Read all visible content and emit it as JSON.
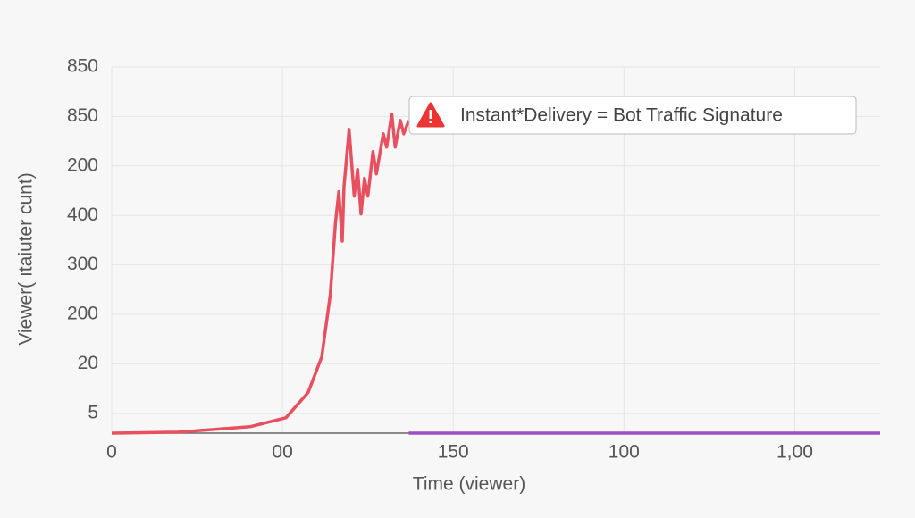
{
  "chart_data": {
    "type": "line",
    "ylabel": "Viewer( ıtaiuter cunt)",
    "xlabel": "Time (viewer)",
    "annotation": "Instant*Delivery = Bot Traffic Signature",
    "grid": true,
    "xlim": [
      0,
      4.5
    ],
    "ylim": [
      0.6,
      8
    ],
    "xticks": [
      0,
      {
        "value": 1,
        "label": "00"
      },
      {
        "value": 2,
        "label": "150"
      },
      {
        "value": 3,
        "label": "100"
      },
      {
        "value": 4,
        "label": "1,00"
      }
    ],
    "yticks": [
      {
        "value": 1,
        "label": "5"
      },
      {
        "value": 2,
        "label": "20"
      },
      {
        "value": 3,
        "label": "200"
      },
      {
        "value": 4,
        "label": "300"
      },
      {
        "value": 5,
        "label": "400"
      },
      {
        "value": 6,
        "label": "200"
      },
      {
        "value": 7,
        "label": "850"
      },
      {
        "value": 8,
        "label": "850"
      }
    ],
    "series": [
      {
        "color": "#e8505f",
        "x": [
          0,
          0.39,
          0.81,
          1.02,
          1.15,
          1.23,
          1.28,
          1.31,
          1.33,
          1.35,
          1.36,
          1.39,
          1.42,
          1.44,
          1.46,
          1.48,
          1.5,
          1.53,
          1.55,
          1.59,
          1.61,
          1.64,
          1.66,
          1.69,
          1.71,
          1.74
        ],
        "values": [
          0.6,
          0.62,
          0.73,
          0.91,
          1.42,
          2.14,
          3.4,
          4.84,
          5.48,
          4.48,
          5.57,
          6.74,
          5.39,
          5.93,
          5.03,
          5.75,
          5.39,
          6.29,
          5.84,
          6.65,
          6.38,
          7.05,
          6.38,
          6.92,
          6.65,
          6.92
        ]
      },
      {
        "color": "#9b4fc0",
        "x": [
          1.74,
          4.5
        ],
        "values": [
          0.6,
          0.6
        ]
      }
    ]
  }
}
